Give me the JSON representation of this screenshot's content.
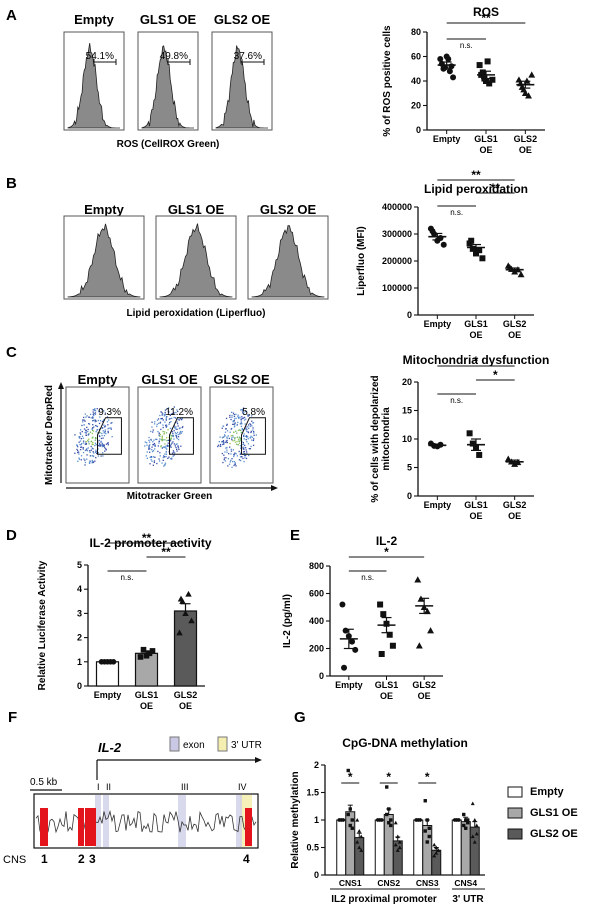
{
  "panels": [
    {
      "id": "A",
      "flow": {
        "type": "histogram",
        "samples": [
          "Empty",
          "GLS1 OE",
          "GLS2 OE"
        ],
        "gate_values": [
          "54.1%",
          "49.8%",
          "37.6%"
        ],
        "xlabel": "ROS (CellROX Green)"
      },
      "chart": {
        "type": "scatter-mean-sem",
        "title": "ROS",
        "ylabel": "% of ROS positive cells",
        "categories": [
          "Empty",
          "GLS1\nOE",
          "GLS2\nOE"
        ],
        "category_lines": [
          [
            "Empty"
          ],
          [
            "GLS1",
            "OE"
          ],
          [
            "GLS2",
            "OE"
          ]
        ],
        "yticks": [
          0,
          20,
          40,
          60,
          80
        ],
        "ylim": [
          0,
          80
        ],
        "markers": [
          "circle",
          "square",
          "triangle"
        ],
        "points": [
          [
            58,
            50,
            60,
            48,
            43,
            54,
            51,
            58,
            52
          ],
          [
            53,
            47,
            40,
            38,
            41,
            45,
            42,
            56
          ],
          [
            41,
            35,
            30,
            28,
            45,
            38,
            33,
            40
          ]
        ],
        "means": [
          53,
          45,
          37
        ],
        "sems": [
          2.5,
          3,
          2.8
        ],
        "comparisons": [
          {
            "a": 0,
            "b": 1,
            "label": "n.s."
          },
          {
            "a": 0,
            "b": 2,
            "label": "**"
          }
        ]
      }
    },
    {
      "id": "B",
      "flow": {
        "type": "histogram",
        "samples": [
          "Empty",
          "GLS1 OE",
          "GLS2 OE"
        ],
        "gate_values": [
          "",
          "",
          ""
        ],
        "xlabel": "Lipid peroxidation (Liperfluo)"
      },
      "chart": {
        "type": "scatter-mean-sem",
        "title": "Lipid peroxidation",
        "ylabel": "Liperfluo (MFI)",
        "categories": [
          "Empty",
          "GLS1\nOE",
          "GLS2\nOE"
        ],
        "category_lines": [
          [
            "Empty"
          ],
          [
            "GLS1",
            "OE"
          ],
          [
            "GLS2",
            "OE"
          ]
        ],
        "yticks": [
          0,
          100000,
          200000,
          300000,
          400000
        ],
        "ylim": [
          0,
          400000
        ],
        "markers": [
          "circle",
          "square",
          "triangle"
        ],
        "points": [
          [
            320000,
            300000,
            275000,
            285000,
            260000,
            310000
          ],
          [
            265000,
            245000,
            228000,
            240000,
            210000,
            275000
          ],
          [
            182000,
            170000,
            160000,
            168000,
            150000,
            175000
          ]
        ],
        "means": [
          290000,
          250000,
          168000
        ],
        "sems": [
          12000,
          11000,
          6000
        ],
        "comparisons": [
          {
            "a": 0,
            "b": 1,
            "label": "n.s."
          },
          {
            "a": 1,
            "b": 2,
            "label": "**"
          },
          {
            "a": 0,
            "b": 2,
            "label": "**"
          }
        ]
      }
    },
    {
      "id": "C",
      "flow": {
        "type": "dotplot",
        "samples": [
          "Empty",
          "GLS1 OE",
          "GLS2 OE"
        ],
        "gate_values": [
          "9.3%",
          "11.2%",
          "5.8%"
        ],
        "xlabel": "Mitotracker Green",
        "ylabel": "Mitotracker DeepRed"
      },
      "chart": {
        "type": "scatter-mean-sem",
        "title": "Mitochondria dysfunction",
        "ylabel": "% of cells with depolarized mitochondria",
        "ylabel_lines": [
          "% of cells with depolarized",
          "mitochondria"
        ],
        "categories": [
          "Empty",
          "GLS1\nOE",
          "GLS2\nOE"
        ],
        "category_lines": [
          [
            "Empty"
          ],
          [
            "GLS1",
            "OE"
          ],
          [
            "GLS2",
            "OE"
          ]
        ],
        "yticks": [
          0,
          5,
          10,
          15,
          20
        ],
        "ylim": [
          0,
          20
        ],
        "markers": [
          "circle",
          "square",
          "triangle"
        ],
        "points": [
          [
            9.2,
            8.8,
            8.7,
            9.0
          ],
          [
            11.0,
            9.2,
            8.6,
            7.2
          ],
          [
            6.5,
            6.0,
            5.6,
            5.9
          ]
        ],
        "means": [
          8.9,
          9.0,
          6.0
        ],
        "sems": [
          0.2,
          1.0,
          0.3
        ],
        "comparisons": [
          {
            "a": 0,
            "b": 1,
            "label": "n.s."
          },
          {
            "a": 1,
            "b": 2,
            "label": "*"
          },
          {
            "a": 0,
            "b": 2,
            "label": "*"
          }
        ]
      }
    },
    {
      "id": "D",
      "chart": {
        "type": "bar-dots",
        "title": "IL-2 promoter activity",
        "ylabel": "Relative Luciferase Activity",
        "categories": [
          "Empty",
          "GLS1\nOE",
          "GLS2\nOE"
        ],
        "category_lines": [
          [
            "Empty"
          ],
          [
            "GLS1",
            "OE"
          ],
          [
            "GLS2",
            "OE"
          ]
        ],
        "yticks": [
          0,
          1,
          2,
          3,
          4,
          5
        ],
        "ylim": [
          0,
          5
        ],
        "bar_colors": [
          "#ffffff",
          "#a8a8a8",
          "#5a5a5a"
        ],
        "markers": [
          "circle",
          "square",
          "triangle"
        ],
        "points": [
          [
            1.0,
            1.0,
            1.0,
            1.0,
            1.0
          ],
          [
            1.2,
            1.5,
            1.25,
            1.35,
            1.45
          ],
          [
            2.2,
            3.5,
            3.0,
            3.8,
            2.7,
            3.6
          ]
        ],
        "means": [
          1.0,
          1.35,
          3.1
        ],
        "sems": [
          0.02,
          0.1,
          0.3
        ],
        "comparisons": [
          {
            "a": 0,
            "b": 1,
            "label": "n.s."
          },
          {
            "a": 1,
            "b": 2,
            "label": "**"
          },
          {
            "a": 0,
            "b": 2,
            "label": "**"
          }
        ]
      }
    },
    {
      "id": "E",
      "chart": {
        "type": "scatter-mean-sem",
        "title": "IL-2",
        "ylabel": "IL-2 (pg/ml)",
        "categories": [
          "Empty",
          "GLS1\nOE",
          "GLS2\nOE"
        ],
        "category_lines": [
          [
            "Empty"
          ],
          [
            "GLS1",
            "OE"
          ],
          [
            "GLS2",
            "OE"
          ]
        ],
        "yticks": [
          0,
          200,
          400,
          600,
          800
        ],
        "ylim": [
          0,
          800
        ],
        "markers": [
          "circle",
          "square",
          "triangle"
        ],
        "points": [
          [
            520,
            330,
            290,
            250,
            190,
            60
          ],
          [
            520,
            450,
            380,
            300,
            220,
            160
          ],
          [
            700,
            560,
            500,
            470,
            330,
            220
          ]
        ],
        "means": [
          270,
          370,
          510
        ],
        "sems": [
          70,
          55,
          55
        ],
        "comparisons": [
          {
            "a": 0,
            "b": 1,
            "label": "n.s."
          },
          {
            "a": 0,
            "b": 2,
            "label": "*"
          }
        ]
      }
    },
    {
      "id": "F",
      "genome": {
        "gene": "IL-2",
        "scale": "0.5 kb",
        "legend": [
          "exon",
          "3' UTR"
        ],
        "exon_label": "exon",
        "exon_numerals": [
          "I",
          "II",
          "III",
          "IV"
        ],
        "cns_prefix": "CNS",
        "cns_labels": [
          "1",
          "2",
          "3",
          "4"
        ]
      }
    },
    {
      "id": "G",
      "chart": {
        "type": "grouped-bar",
        "title": "CpG-DNA methylation",
        "ylabel": "Relative methylation",
        "categories": [
          "CNS1",
          "CNS2",
          "CNS3",
          "CNS4"
        ],
        "group_labels": [
          "IL2 proximal promoter",
          "3' UTR"
        ],
        "yticks": [
          0.0,
          0.5,
          1.0,
          1.5,
          2.0
        ],
        "ylim": [
          0,
          2.0
        ],
        "series": [
          {
            "name": "Empty",
            "color": "#ffffff",
            "values": [
              1.0,
              1.0,
              1.0,
              1.0
            ]
          },
          {
            "name": "GLS1 OE",
            "color": "#a8a8a8",
            "values": [
              1.15,
              1.1,
              0.9,
              0.97
            ]
          },
          {
            "name": "GLS2 OE",
            "color": "#5a5a5a",
            "values": [
              0.68,
              0.62,
              0.45,
              0.87
            ]
          }
        ],
        "errors": [
          [
            0.02,
            0.02,
            0.02,
            0.02
          ],
          [
            0.12,
            0.1,
            0.1,
            0.08
          ],
          [
            0.08,
            0.07,
            0.05,
            0.1
          ]
        ],
        "points": [
          [
            [
              1.0,
              1.0,
              1.0,
              1.0,
              1.0,
              1.0
            ],
            [
              1.0,
              1.0,
              1.0,
              1.0,
              1.0,
              1.0
            ],
            [
              1.0,
              1.0,
              1.0,
              1.0,
              1.0,
              1.0
            ],
            [
              1.0,
              1.0,
              1.0,
              1.0,
              1.0,
              1.0
            ]
          ],
          [
            [
              1.9,
              1.2,
              1.0,
              1.1,
              0.9,
              0.85
            ],
            [
              1.6,
              1.2,
              1.0,
              1.1,
              0.95,
              0.9
            ],
            [
              1.35,
              1.0,
              0.85,
              0.8,
              0.6,
              0.7
            ],
            [
              1.1,
              1.0,
              0.95,
              0.9,
              0.85,
              1.0
            ]
          ],
          [
            [
              1.0,
              0.8,
              0.7,
              0.6,
              0.5,
              0.45
            ],
            [
              0.95,
              0.7,
              0.6,
              0.55,
              0.45,
              0.5
            ],
            [
              0.55,
              0.5,
              0.45,
              0.35,
              0.4,
              0.45
            ],
            [
              1.3,
              1.0,
              0.9,
              0.7,
              0.6,
              0.75
            ]
          ]
        ],
        "markers": [
          "circle",
          "square",
          "triangle"
        ],
        "significance": [
          {
            "cat": 0,
            "label": "*"
          },
          {
            "cat": 1,
            "label": "*"
          },
          {
            "cat": 2,
            "label": "*"
          }
        ]
      }
    }
  ]
}
